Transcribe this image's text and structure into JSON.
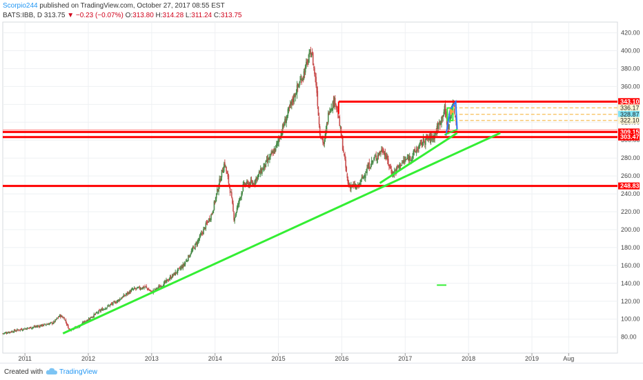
{
  "header": {
    "author": "Scorpio244",
    "published_text": "published on TradingView.com, October 27, 2017 08:55 EST",
    "symbol_line_prefix": "BATS:IBB, D  313.75",
    "change_arrow": "▼",
    "change_text": "−0.23 (−0.07%)",
    "o_label": "O:",
    "o_value": "313.80",
    "h_label": "H:",
    "h_value": "314.28",
    "l_label": "L:",
    "l_value": "311.24",
    "c_label": "C:",
    "c_value": "313.75"
  },
  "footer": {
    "created_with": "Created with",
    "brand": "TradingView"
  },
  "colors": {
    "accent_blue": "#2196f3",
    "down_red": "#d0021b",
    "level_red": "#ff0000",
    "trend_green": "#33ee33",
    "fib_yellow": "#f8c870",
    "cyan_box": "#7fe3f5",
    "candle_up": "#4b8c4b",
    "candle_down": "#c84c4c",
    "grid": "#eef0f3",
    "axis_text": "#444444"
  },
  "chart_data": {
    "type": "candlestick",
    "y_axis": {
      "ylim": [
        62,
        432
      ],
      "ticks": [
        80,
        100,
        120,
        140,
        160,
        180,
        200,
        220,
        240,
        260,
        280,
        300,
        320,
        340,
        360,
        380,
        400,
        420
      ],
      "tick_labels": [
        "80.00",
        "100.00",
        "120.00",
        "140.00",
        "160.00",
        "180.00",
        "200.00",
        "220.00",
        "240.00",
        "260.00",
        "280.00",
        "300.00",
        "320.00",
        "340.00",
        "360.00",
        "380.00",
        "400.00",
        "420.00"
      ]
    },
    "x_axis": {
      "xlim": [
        2010.65,
        2020.35
      ],
      "ticks": [
        2011,
        2012,
        2013,
        2014,
        2015,
        2016,
        2017,
        2018,
        2019,
        2019.58
      ],
      "tick_labels": [
        "2011",
        "2012",
        "2013",
        "2014",
        "2015",
        "2016",
        "2017",
        "2018",
        "2019",
        "Aug"
      ]
    },
    "grid": true,
    "price_path": [
      [
        2010.65,
        84
      ],
      [
        2010.9,
        88
      ],
      [
        2011.2,
        92
      ],
      [
        2011.45,
        96
      ],
      [
        2011.55,
        104
      ],
      [
        2011.62,
        101
      ],
      [
        2011.7,
        88
      ],
      [
        2011.85,
        92
      ],
      [
        2012.0,
        100
      ],
      [
        2012.2,
        110
      ],
      [
        2012.45,
        120
      ],
      [
        2012.7,
        133
      ],
      [
        2012.9,
        136
      ],
      [
        2013.0,
        130
      ],
      [
        2013.2,
        140
      ],
      [
        2013.5,
        160
      ],
      [
        2013.75,
        190
      ],
      [
        2013.95,
        218
      ],
      [
        2014.1,
        262
      ],
      [
        2014.15,
        275
      ],
      [
        2014.25,
        240
      ],
      [
        2014.3,
        212
      ],
      [
        2014.45,
        250
      ],
      [
        2014.6,
        252
      ],
      [
        2014.75,
        268
      ],
      [
        2014.95,
        290
      ],
      [
        2015.1,
        320
      ],
      [
        2015.25,
        350
      ],
      [
        2015.4,
        375
      ],
      [
        2015.52,
        400
      ],
      [
        2015.6,
        360
      ],
      [
        2015.65,
        310
      ],
      [
        2015.72,
        295
      ],
      [
        2015.8,
        335
      ],
      [
        2015.9,
        345
      ],
      [
        2015.97,
        315
      ],
      [
        2016.1,
        250
      ],
      [
        2016.25,
        247
      ],
      [
        2016.4,
        268
      ],
      [
        2016.5,
        278
      ],
      [
        2016.65,
        290
      ],
      [
        2016.8,
        262
      ],
      [
        2016.95,
        275
      ],
      [
        2017.1,
        282
      ],
      [
        2017.3,
        300
      ],
      [
        2017.45,
        304
      ],
      [
        2017.55,
        320
      ],
      [
        2017.62,
        335
      ],
      [
        2017.68,
        312
      ],
      [
        2017.75,
        343
      ],
      [
        2017.82,
        313.75
      ]
    ],
    "levels": [
      {
        "label": "343.10",
        "value": 343.1,
        "x_start": 2015.95
      },
      {
        "label": "309.15",
        "value": 309.15,
        "x_start": null
      },
      {
        "label": "303.47",
        "value": 303.47,
        "x_start": null
      },
      {
        "label": "248.83",
        "value": 248.83,
        "x_start": null
      }
    ],
    "dashed_levels": [
      {
        "label": "336.17",
        "value": 336.17,
        "x_start": 2017.68
      },
      {
        "label": "328.87",
        "value": 328.87,
        "x_start": 2017.68
      },
      {
        "label": "322.10",
        "value": 322.1,
        "x_start": 2017.68
      }
    ],
    "trendlines": [
      {
        "from": [
          2011.6,
          84
        ],
        "to": [
          2018.5,
          308
        ]
      },
      {
        "from": [
          2016.6,
          252
        ],
        "to": [
          2017.82,
          308
        ]
      }
    ],
    "pattern_markers": {
      "x_range": [
        2017.6,
        2017.82
      ],
      "y_range": [
        304,
        343
      ]
    },
    "annotation_dash": {
      "x": [
        2017.5,
        2017.65
      ],
      "y": 138
    }
  }
}
